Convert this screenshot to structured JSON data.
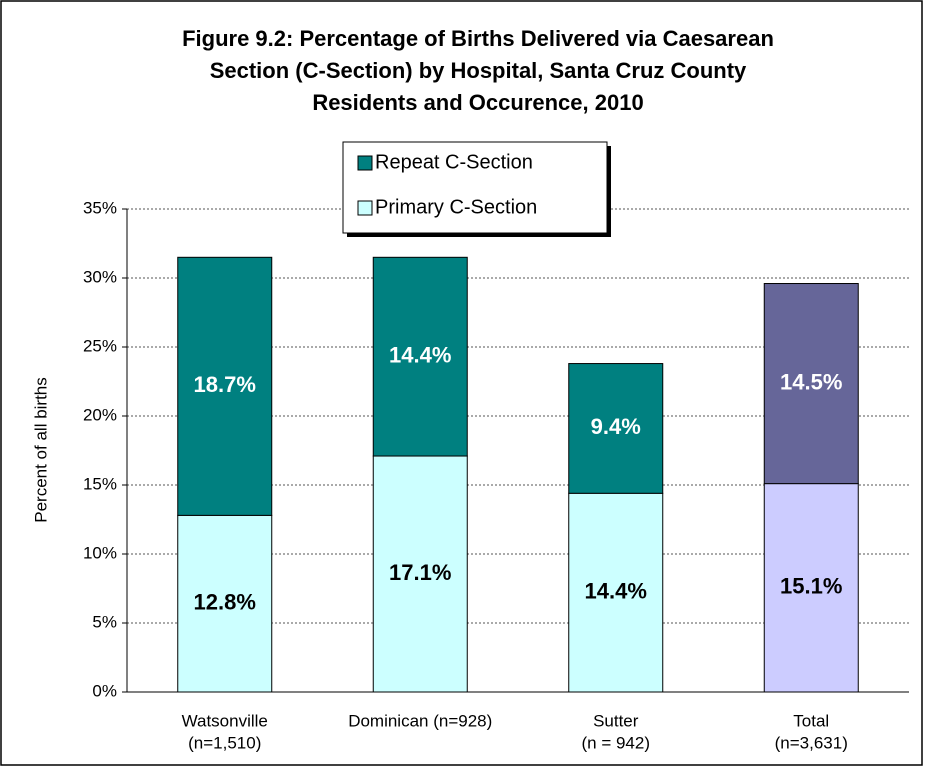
{
  "chart_data": {
    "type": "stacked_bar",
    "title": [
      "Figure 9.2: Percentage of Births Delivered via Caesarean",
      "Section (C-Section) by Hospital, Santa Cruz County",
      "Residents and Occurence, 2010"
    ],
    "y_label": "Percent of all births",
    "categories": [
      [
        "Watsonville",
        "(n=1,510)"
      ],
      [
        "Dominican (n=928)"
      ],
      [
        "Sutter",
        "(n = 942)"
      ],
      [
        "Total",
        "(n=3,631)"
      ]
    ],
    "series": [
      {
        "name": "Primary C-Section",
        "color": "#ccffff",
        "point_colors": [
          "#ccffff",
          "#ccffff",
          "#ccffff",
          "#ccccff"
        ],
        "label_color": "#000000",
        "values": [
          12.8,
          17.1,
          14.4,
          15.1
        ],
        "value_labels": [
          "12.8%",
          "17.1%",
          "14.4%",
          "15.1%"
        ]
      },
      {
        "name": "Repeat C-Section",
        "color": "#008080",
        "point_colors": [
          "#008080",
          "#008080",
          "#008080",
          "#666699"
        ],
        "label_color": "#ffffff",
        "values": [
          18.7,
          14.4,
          9.4,
          14.5
        ],
        "value_labels": [
          "18.7%",
          "14.4%",
          "9.4%",
          "14.5%"
        ]
      }
    ],
    "ylim": [
      0,
      35
    ],
    "yticks": [
      {
        "value": 0,
        "label": "0%"
      },
      {
        "value": 5,
        "label": "5%"
      },
      {
        "value": 10,
        "label": "10%"
      },
      {
        "value": 15,
        "label": "15%"
      },
      {
        "value": 20,
        "label": "20%"
      },
      {
        "value": 25,
        "label": "25%"
      },
      {
        "value": 30,
        "label": "30%"
      },
      {
        "value": 35,
        "label": "35%"
      }
    ],
    "grid": true,
    "legend": "top"
  }
}
